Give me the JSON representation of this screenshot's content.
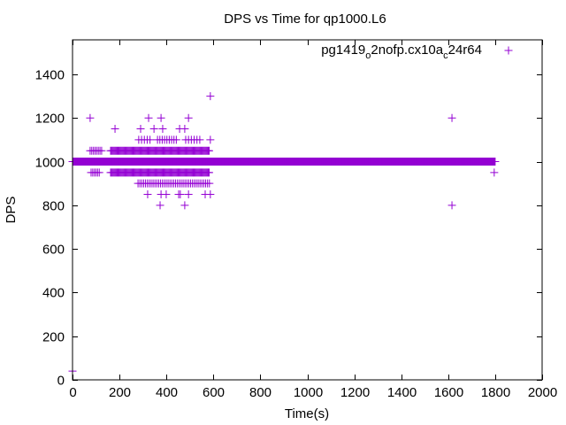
{
  "chart_data": {
    "type": "scatter",
    "title": "DPS vs Time for qp1000.L6",
    "xlabel": "Time(s)",
    "ylabel": "DPS",
    "xlim": [
      0,
      2000
    ],
    "ylim": [
      0,
      1558
    ],
    "xticks": [
      0,
      200,
      400,
      600,
      800,
      1000,
      1200,
      1400,
      1600,
      1800,
      2000
    ],
    "yticks": [
      0,
      200,
      400,
      600,
      800,
      1000,
      1200,
      1400
    ],
    "grid": false,
    "legend_position": "top-right",
    "color": "#9400d3",
    "series": [
      {
        "name": "pg1419_o2nofp.cx10a_c24r64",
        "legend_parts": {
          "a": "pg1419",
          "sub1": "o",
          "b": "2nofp.cx10a",
          "sub2": "c",
          "c": "24r64"
        },
        "baseline": {
          "y": 1000,
          "x_start": 0,
          "x_end": 1800,
          "x_step": 2
        },
        "point_groups": [
          {
            "y": 1050,
            "x_ranges": [
              [
                75,
                124,
                7
              ],
              [
                162,
                584,
                4
              ]
            ]
          },
          {
            "y": 950,
            "x_ranges": [
              [
                79,
                117,
                7
              ],
              [
                162,
                584,
                4
              ]
            ]
          },
          {
            "y": 1100,
            "x_ranges": [
              [
                282,
                339,
                12
              ],
              [
                362,
                444,
                10
              ],
              [
                482,
                546,
                12
              ]
            ]
          },
          {
            "y": 900,
            "x_ranges": [
              [
                279,
                587,
                8
              ]
            ]
          }
        ],
        "points": [
          {
            "x": 0,
            "y": 40
          },
          {
            "x": 75,
            "y": 1200
          },
          {
            "x": 324,
            "y": 1200
          },
          {
            "x": 377,
            "y": 1200
          },
          {
            "x": 494,
            "y": 1200
          },
          {
            "x": 181,
            "y": 1150
          },
          {
            "x": 290,
            "y": 1150
          },
          {
            "x": 347,
            "y": 1150
          },
          {
            "x": 384,
            "y": 1150
          },
          {
            "x": 456,
            "y": 1150
          },
          {
            "x": 478,
            "y": 1150
          },
          {
            "x": 587,
            "y": 1100
          },
          {
            "x": 320,
            "y": 850
          },
          {
            "x": 377,
            "y": 850
          },
          {
            "x": 399,
            "y": 850
          },
          {
            "x": 452,
            "y": 850
          },
          {
            "x": 459,
            "y": 850
          },
          {
            "x": 494,
            "y": 850
          },
          {
            "x": 565,
            "y": 850
          },
          {
            "x": 587,
            "y": 850
          },
          {
            "x": 373,
            "y": 800
          },
          {
            "x": 478,
            "y": 800
          },
          {
            "x": 587,
            "y": 1300
          },
          {
            "x": 1616,
            "y": 1200
          },
          {
            "x": 1616,
            "y": 800
          },
          {
            "x": 1796,
            "y": 950
          }
        ]
      }
    ]
  }
}
